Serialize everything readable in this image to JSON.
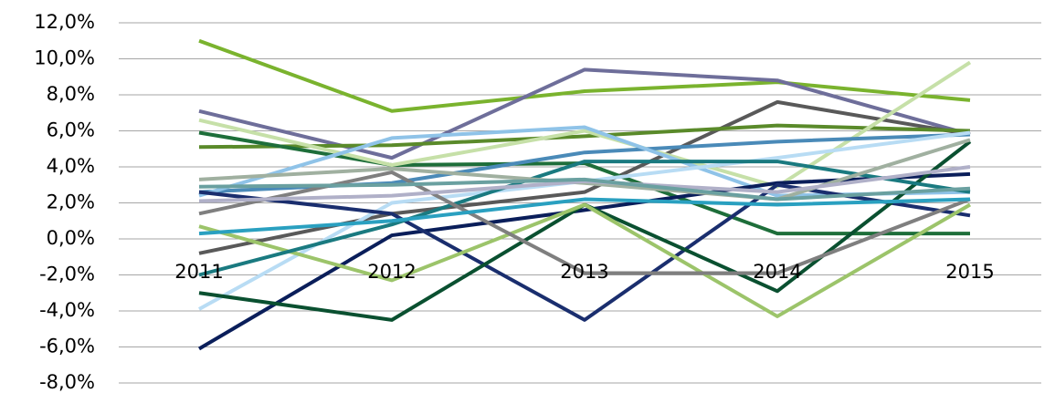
{
  "chart_data": {
    "type": "line",
    "categories": [
      "2011",
      "2012",
      "2013",
      "2014",
      "2015"
    ],
    "series": [
      {
        "color": "#7ab32e",
        "values": [
          11.0,
          7.1,
          8.2,
          8.7,
          7.7
        ]
      },
      {
        "color": "#6e6e9a",
        "values": [
          7.1,
          4.5,
          9.4,
          8.8,
          5.8
        ]
      },
      {
        "color": "#595959",
        "values": [
          -0.8,
          1.4,
          2.6,
          7.6,
          5.8
        ]
      },
      {
        "color": "#5a8a2a",
        "values": [
          5.1,
          5.2,
          5.7,
          6.3,
          6.0
        ]
      },
      {
        "color": "#1e6e3a",
        "values": [
          5.9,
          4.1,
          4.2,
          0.3,
          0.3
        ]
      },
      {
        "color": "#c6e0a8",
        "values": [
          6.6,
          4.1,
          6.0,
          2.9,
          9.8
        ]
      },
      {
        "color": "#4a8ab8",
        "values": [
          2.6,
          3.1,
          4.8,
          5.4,
          5.8
        ]
      },
      {
        "color": "#8fc3e8",
        "values": [
          2.4,
          5.6,
          6.2,
          2.4,
          2.6
        ]
      },
      {
        "color": "#b8dcf4",
        "values": [
          -3.9,
          2.0,
          3.2,
          4.5,
          5.9
        ]
      },
      {
        "color": "#0a1e5a",
        "values": [
          -6.1,
          0.2,
          1.6,
          3.1,
          3.6
        ]
      },
      {
        "color": "#1a2e6e",
        "values": [
          2.6,
          1.4,
          -4.5,
          3.0,
          1.3
        ]
      },
      {
        "color": "#0a5030",
        "values": [
          -3.0,
          -4.5,
          1.9,
          -2.9,
          5.4
        ]
      },
      {
        "color": "#9cc46a",
        "values": [
          0.7,
          -2.3,
          1.9,
          -4.3,
          1.9
        ]
      },
      {
        "color": "#1a7a80",
        "values": [
          -2.0,
          0.8,
          4.3,
          4.3,
          2.6
        ]
      },
      {
        "color": "#7f7f7f",
        "values": [
          1.4,
          3.7,
          -1.9,
          -1.9,
          2.2
        ]
      },
      {
        "color": "#a0b0a0",
        "values": [
          3.3,
          3.9,
          3.1,
          2.2,
          5.5
        ]
      },
      {
        "color": "#b0b0c8",
        "values": [
          2.1,
          2.4,
          3.2,
          2.6,
          4.0
        ]
      },
      {
        "color": "#2aa0c0",
        "values": [
          0.3,
          1.0,
          2.2,
          1.9,
          2.2
        ]
      },
      {
        "color": "#6aa0a0",
        "values": [
          2.9,
          3.0,
          3.3,
          2.2,
          2.8
        ]
      }
    ],
    "ylim": [
      -8,
      12
    ],
    "yticks": [
      {
        "value": -8,
        "label": "-8,0%"
      },
      {
        "value": -6,
        "label": "-6,0%"
      },
      {
        "value": -4,
        "label": "-4,0%"
      },
      {
        "value": -2,
        "label": "-2,0%"
      },
      {
        "value": 0,
        "label": "0,0%"
      },
      {
        "value": 2,
        "label": "2,0%"
      },
      {
        "value": 4,
        "label": "4,0%"
      },
      {
        "value": 6,
        "label": "6,0%"
      },
      {
        "value": 8,
        "label": "8,0%"
      },
      {
        "value": 10,
        "label": "10,0%"
      },
      {
        "value": 12,
        "label": "12,0%"
      }
    ],
    "grid": true
  }
}
